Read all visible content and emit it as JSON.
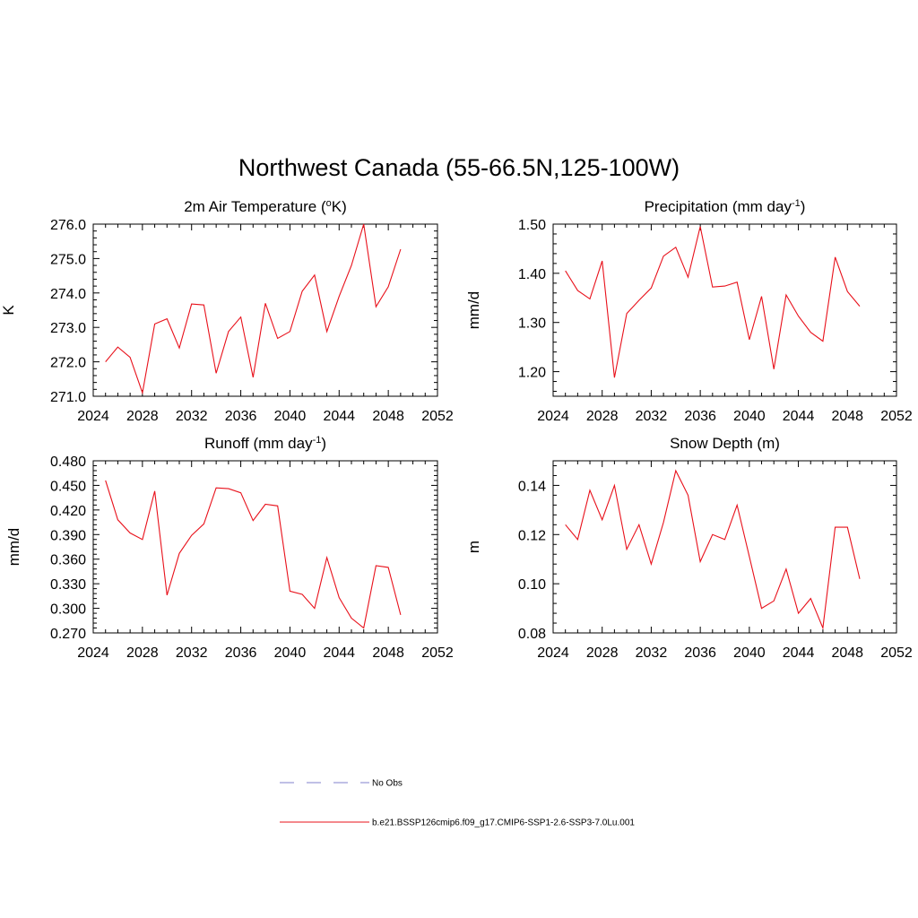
{
  "title": "Northwest Canada (55-66.5N,125-100W)",
  "series_color": "#e8101a",
  "obs_color": "#9a9ad6",
  "legend": {
    "obs_label": "No Obs",
    "model_label": "b.e21.BSSP126cmip6.f09_g17.CMIP6-SSP1-2.6-SSP3-7.0Lu.001"
  },
  "chart_data": [
    {
      "type": "line",
      "title": "2m Air Temperature (",
      "title_sup": "o",
      "title_tail": "K)",
      "ylabel": "K",
      "xlim": [
        2024,
        2052
      ],
      "xticks": [
        "2024",
        "2028",
        "2032",
        "2036",
        "2040",
        "2044",
        "2048",
        "2052"
      ],
      "ylim": [
        271.0,
        276.0
      ],
      "yticks": [
        "271.0",
        "272.0",
        "273.0",
        "274.0",
        "275.0",
        "276.0"
      ],
      "x": [
        2025,
        2026,
        2027,
        2028,
        2029,
        2030,
        2031,
        2032,
        2033,
        2034,
        2035,
        2036,
        2037,
        2038,
        2039,
        2040,
        2041,
        2042,
        2043,
        2044,
        2045,
        2046,
        2047,
        2048,
        2049
      ],
      "y": [
        272.0,
        272.43,
        272.13,
        271.1,
        273.1,
        273.25,
        272.4,
        273.68,
        273.65,
        271.67,
        272.88,
        273.3,
        271.55,
        273.7,
        272.68,
        272.88,
        274.05,
        274.52,
        272.88,
        273.9,
        274.8,
        276.0,
        273.6,
        274.18,
        275.27
      ]
    },
    {
      "type": "line",
      "title": "Precipitation (mm day",
      "title_sup": "-1",
      "title_tail": ")",
      "ylabel": "mm/d",
      "xlim": [
        2024,
        2052
      ],
      "xticks": [
        "2024",
        "2028",
        "2032",
        "2036",
        "2040",
        "2044",
        "2048",
        "2052"
      ],
      "ylim": [
        1.15,
        1.5
      ],
      "yticks": [
        "1.20",
        "1.30",
        "1.40",
        "1.50"
      ],
      "x": [
        2025,
        2026,
        2027,
        2028,
        2029,
        2030,
        2031,
        2032,
        2033,
        2034,
        2035,
        2036,
        2037,
        2038,
        2039,
        2040,
        2041,
        2042,
        2043,
        2044,
        2045,
        2046,
        2047,
        2048,
        2049
      ],
      "y": [
        1.405,
        1.365,
        1.348,
        1.425,
        1.188,
        1.318,
        1.345,
        1.37,
        1.435,
        1.453,
        1.392,
        1.495,
        1.372,
        1.374,
        1.382,
        1.265,
        1.353,
        1.205,
        1.356,
        1.313,
        1.28,
        1.262,
        1.433,
        1.363,
        1.333
      ]
    },
    {
      "type": "line",
      "title": "Runoff (mm day",
      "title_sup": "-1",
      "title_tail": ")",
      "ylabel": "mm/d",
      "xlim": [
        2024,
        2052
      ],
      "xticks": [
        "2024",
        "2028",
        "2032",
        "2036",
        "2040",
        "2044",
        "2048",
        "2052"
      ],
      "ylim": [
        0.27,
        0.48
      ],
      "yticks": [
        "0.270",
        "0.300",
        "0.330",
        "0.360",
        "0.390",
        "0.420",
        "0.450",
        "0.480"
      ],
      "x": [
        2025,
        2026,
        2027,
        2028,
        2029,
        2030,
        2031,
        2032,
        2033,
        2034,
        2035,
        2036,
        2037,
        2038,
        2039,
        2040,
        2041,
        2042,
        2043,
        2044,
        2045,
        2046,
        2047,
        2048,
        2049
      ],
      "y": [
        0.456,
        0.408,
        0.392,
        0.384,
        0.443,
        0.316,
        0.367,
        0.389,
        0.403,
        0.447,
        0.446,
        0.441,
        0.407,
        0.427,
        0.425,
        0.321,
        0.317,
        0.3,
        0.362,
        0.313,
        0.288,
        0.276,
        0.352,
        0.35,
        0.292
      ]
    },
    {
      "type": "line",
      "title": "Snow Depth (m)",
      "title_sup": "",
      "title_tail": "",
      "ylabel": "m",
      "xlim": [
        2024,
        2052
      ],
      "xticks": [
        "2024",
        "2028",
        "2032",
        "2036",
        "2040",
        "2044",
        "2048",
        "2052"
      ],
      "ylim": [
        0.08,
        0.15
      ],
      "yticks": [
        "0.08",
        "0.10",
        "0.12",
        "0.14"
      ],
      "x": [
        2025,
        2026,
        2027,
        2028,
        2029,
        2030,
        2031,
        2032,
        2033,
        2034,
        2035,
        2036,
        2037,
        2038,
        2039,
        2040,
        2041,
        2042,
        2043,
        2044,
        2045,
        2046,
        2047,
        2048,
        2049
      ],
      "y": [
        0.124,
        0.118,
        0.138,
        0.126,
        0.14,
        0.114,
        0.124,
        0.108,
        0.125,
        0.146,
        0.136,
        0.109,
        0.12,
        0.118,
        0.132,
        0.111,
        0.09,
        0.093,
        0.106,
        0.088,
        0.094,
        0.082,
        0.123,
        0.123,
        0.102
      ]
    }
  ]
}
